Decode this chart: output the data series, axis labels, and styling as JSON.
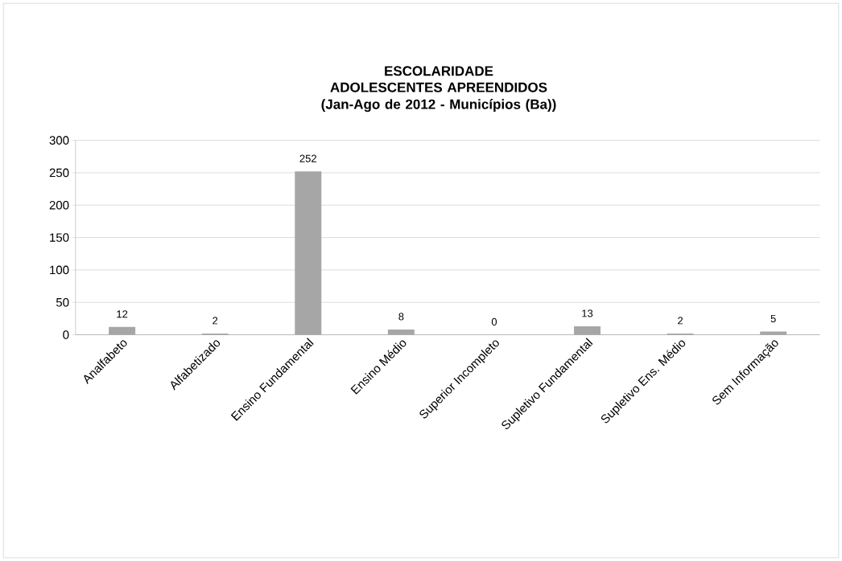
{
  "chart_data": {
    "type": "bar",
    "title": "ESCOLARIDADE",
    "subtitle": "ADOLESCENTES APREENDIDOS (Jan-Ago de 2012 - Municípios (Ba))",
    "categories": [
      "Analfabeto",
      "Alfabetizado",
      "Ensino Fundamental",
      "Ensino Médio",
      "Superior Incompleto",
      "Supletivo Fundamental",
      "Supletivo Ens. Médio",
      "Sem Informação"
    ],
    "values": [
      12,
      2,
      252,
      8,
      0,
      13,
      2,
      5
    ],
    "color": "#a6a6a6",
    "ylim": [
      0,
      300
    ],
    "yticks": [
      0,
      50,
      100,
      150,
      200,
      250,
      300
    ],
    "grid": "y",
    "data_labels": true
  }
}
